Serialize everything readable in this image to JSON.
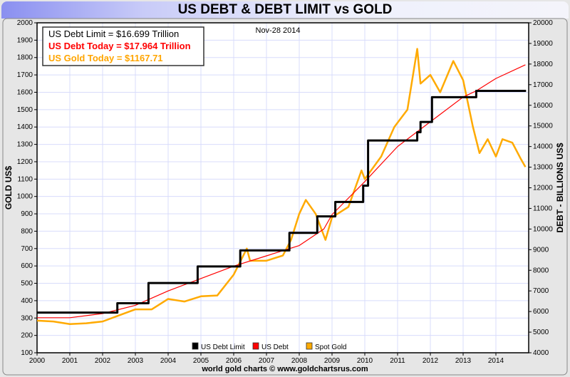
{
  "chart_data": {
    "type": "line",
    "title": "US DEBT & DEBT LIMIT vs GOLD",
    "date_label": "Nov-28  2014",
    "ylabel_left": "GOLD US$",
    "ylabel_right": "DEBT - BILLIONS US$",
    "xlim": [
      2000,
      2015
    ],
    "ylim_left": [
      100,
      2000
    ],
    "ylim_right": [
      4000,
      20000
    ],
    "x_ticks": [
      "2000",
      "2001",
      "2002",
      "2003",
      "2004",
      "2005",
      "2006",
      "2007",
      "2008",
      "2009",
      "2010",
      "2011",
      "2012",
      "2013",
      "2014"
    ],
    "y_ticks_left": [
      "100",
      "200",
      "300",
      "400",
      "500",
      "600",
      "700",
      "800",
      "900",
      "1000",
      "1100",
      "1200",
      "1300",
      "1400",
      "1500",
      "1600",
      "1700",
      "1800",
      "1900",
      "2000"
    ],
    "y_ticks_right": [
      "4000",
      "5000",
      "6000",
      "7000",
      "8000",
      "9000",
      "10000",
      "11000",
      "12000",
      "13000",
      "14000",
      "15000",
      "16000",
      "17000",
      "18000",
      "19000",
      "20000"
    ],
    "grid": true,
    "info_box": [
      {
        "text": "US Debt Limit    = $16.699 Trillion",
        "color": "#000000"
      },
      {
        "text": "US Debt Today = $17.964 Trillion",
        "color": "#ff0000"
      },
      {
        "text": "US Gold Today = $1167.71",
        "color": "#ffa500"
      }
    ],
    "legend": [
      {
        "name": "US Debt Limit",
        "color": "#000000"
      },
      {
        "name": "US Debt",
        "color": "#ff0000"
      },
      {
        "name": "Spot Gold",
        "color": "#ffaa00"
      }
    ],
    "legend_position": "bottom-center",
    "series": [
      {
        "name": "Spot Gold",
        "axis": "left",
        "color": "#ffaa00",
        "x": [
          2000,
          2000.5,
          2001,
          2001.5,
          2002,
          2002.5,
          2003,
          2003.5,
          2004,
          2004.5,
          2005,
          2005.5,
          2006,
          2006.4,
          2006.5,
          2007,
          2007.5,
          2007.75,
          2008,
          2008.2,
          2008.5,
          2008.8,
          2009,
          2009.5,
          2009.9,
          2010,
          2010.5,
          2010.9,
          2011.3,
          2011.6,
          2011.7,
          2012,
          2012.3,
          2012.7,
          2013,
          2013.3,
          2013.5,
          2013.75,
          2014,
          2014.2,
          2014.5,
          2014.75,
          2014.9
        ],
        "y": [
          285,
          280,
          265,
          270,
          280,
          315,
          350,
          350,
          410,
          395,
          425,
          430,
          550,
          700,
          630,
          630,
          660,
          750,
          900,
          980,
          900,
          750,
          880,
          940,
          1150,
          1100,
          1230,
          1400,
          1500,
          1850,
          1650,
          1700,
          1600,
          1780,
          1670,
          1400,
          1250,
          1330,
          1230,
          1330,
          1310,
          1220,
          1170
        ]
      },
      {
        "name": "US Debt",
        "axis": "right",
        "color": "#ff0000",
        "x": [
          2000,
          2001,
          2002,
          2003,
          2004,
          2005,
          2006,
          2007,
          2008,
          2008.75,
          2009,
          2010,
          2011,
          2012,
          2013,
          2013.4,
          2013.8,
          2014,
          2014.9
        ],
        "y": [
          5700,
          5700,
          5900,
          6300,
          7000,
          7600,
          8200,
          8700,
          9200,
          10000,
          10700,
          12300,
          14000,
          15200,
          16400,
          16700,
          17100,
          17300,
          17964
        ]
      },
      {
        "name": "US Debt Limit",
        "axis": "right",
        "color": "#000000",
        "step": true,
        "x": [
          2000,
          2002.45,
          2003.4,
          2004.9,
          2006.2,
          2007.7,
          2008.55,
          2009.1,
          2009.95,
          2010.1,
          2011.6,
          2011.7,
          2012.05,
          2013.4,
          2014.92
        ],
        "y": [
          5950,
          6400,
          7384,
          8184,
          8965,
          9815,
          10615,
          11315,
          12104,
          14294,
          14694,
          15194,
          16394,
          16699,
          16699
        ]
      }
    ]
  },
  "footer": "world gold charts © www.goldchartsrus.com"
}
